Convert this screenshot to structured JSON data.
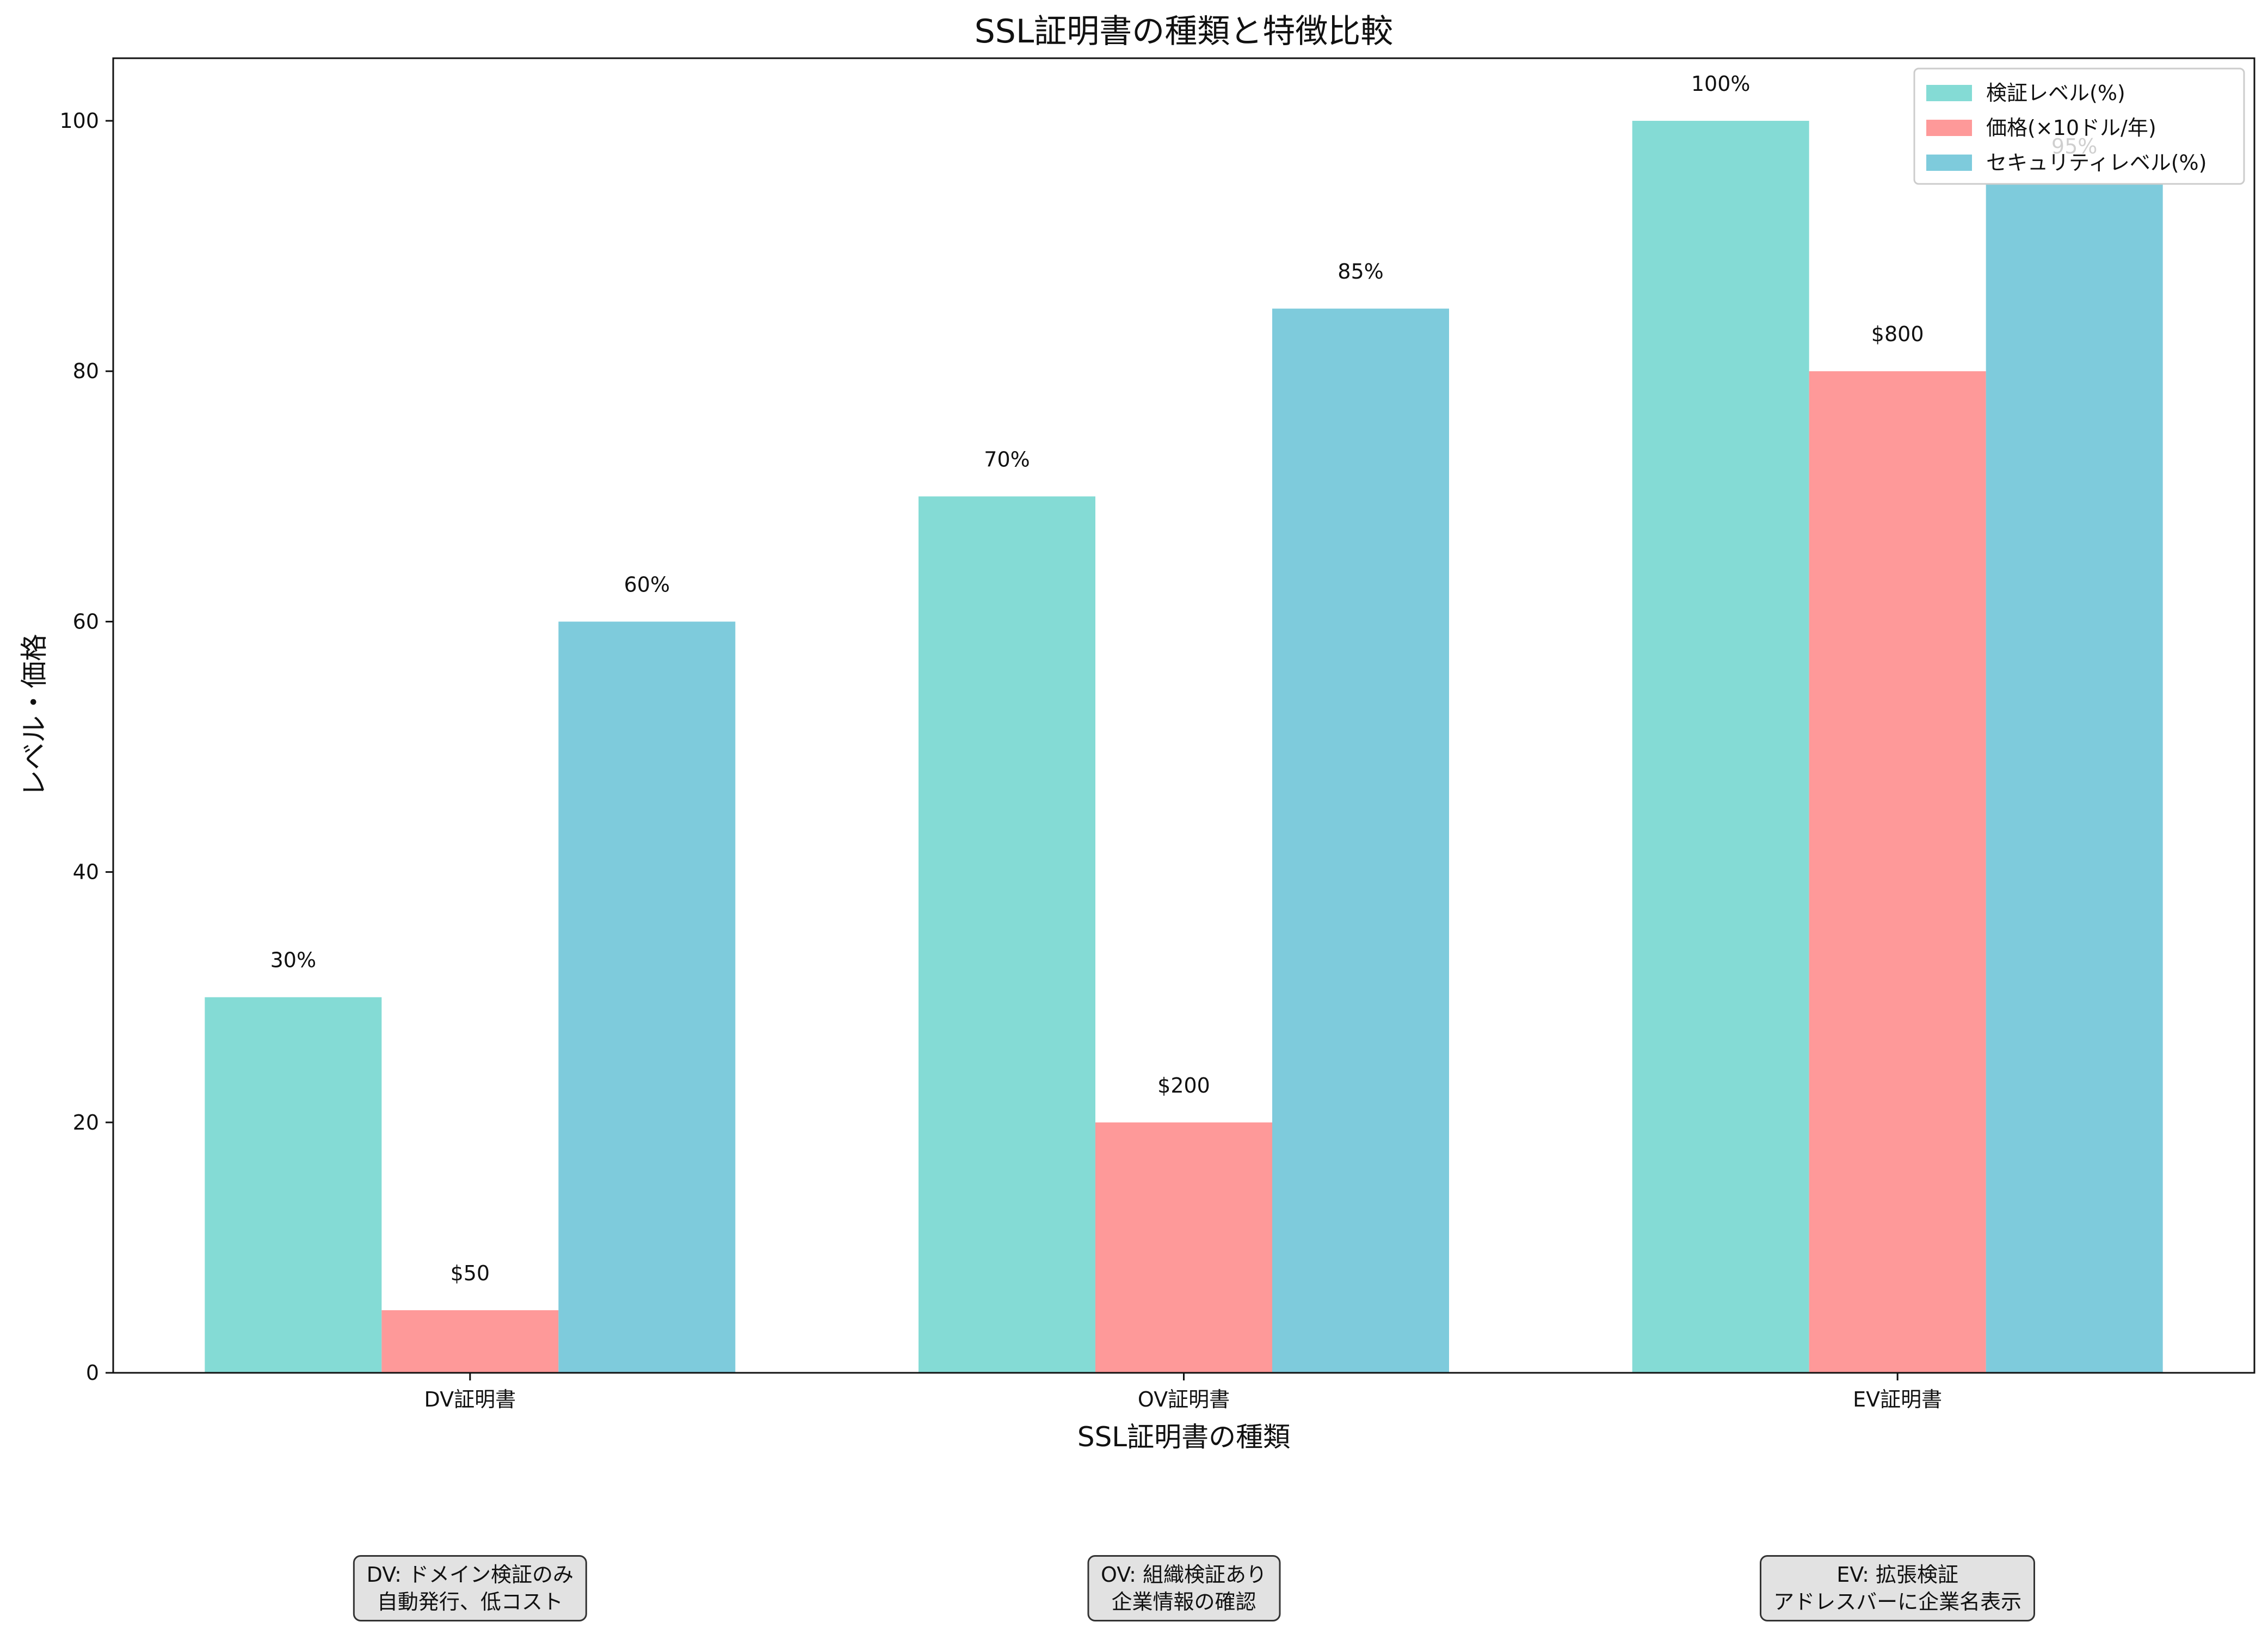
{
  "chart_data": {
    "type": "bar",
    "title": "SSL証明書の種類と特徴比較",
    "xlabel": "SSL証明書の種類",
    "ylabel": "レベル・価格",
    "categories": [
      "DV証明書",
      "OV証明書",
      "EV証明書"
    ],
    "series": [
      {
        "name": "検証レベル(%)",
        "values": [
          30,
          70,
          100
        ],
        "color": "#84dbd5",
        "labels": [
          "30%",
          "70%",
          "100%"
        ]
      },
      {
        "name": "価格(×10ドル/年)",
        "values": [
          5,
          20,
          80
        ],
        "color": "#fe9999",
        "labels": [
          "$50",
          "$200",
          "$800"
        ]
      },
      {
        "name": "セキュリティレベル(%)",
        "values": [
          60,
          85,
          95
        ],
        "color": "#7ecbdc",
        "labels": [
          "60%",
          "85%",
          "95%"
        ]
      }
    ],
    "ylim": [
      0,
      105
    ],
    "yticks": [
      0,
      20,
      40,
      60,
      80,
      100
    ],
    "grid": false,
    "legend_position": "top-right",
    "notes": [
      "DV: ドメイン検証のみ\n自動発行、低コスト",
      "OV: 組織検証あり\n企業情報の確認",
      "EV: 拡張検証\nアドレスバーに企業名表示"
    ]
  }
}
